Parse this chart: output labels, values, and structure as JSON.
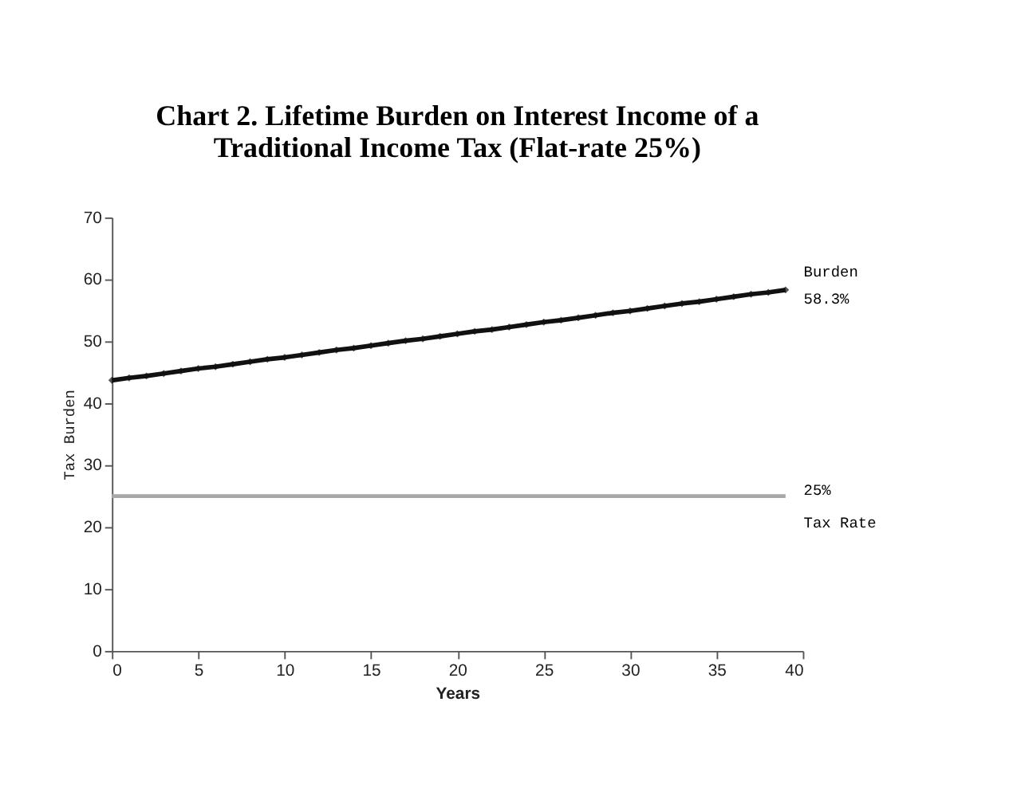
{
  "chart_data": {
    "type": "line",
    "title": [
      "Chart 2. Lifetime Burden on Interest Income of a",
      "Traditional Income Tax (Flat-rate 25%)"
    ],
    "xlabel": "Years",
    "ylabel": "Tax Burden",
    "x": [
      0,
      1,
      2,
      3,
      4,
      5,
      6,
      7,
      8,
      9,
      10,
      11,
      12,
      13,
      14,
      15,
      16,
      17,
      18,
      19,
      20,
      21,
      22,
      23,
      24,
      25,
      26,
      27,
      28,
      29,
      30,
      31,
      32,
      33,
      34,
      35,
      36,
      37,
      38,
      39
    ],
    "series": [
      {
        "name": "Burden",
        "color": "#111111",
        "marker": "diamond",
        "values": [
          43.7,
          44.1,
          44.4,
          44.8,
          45.2,
          45.6,
          45.9,
          46.3,
          46.7,
          47.1,
          47.4,
          47.8,
          48.2,
          48.6,
          48.9,
          49.3,
          49.7,
          50.1,
          50.4,
          50.8,
          51.2,
          51.6,
          51.9,
          52.3,
          52.7,
          53.1,
          53.4,
          53.8,
          54.2,
          54.6,
          54.9,
          55.3,
          55.7,
          56.1,
          56.4,
          56.8,
          57.2,
          57.6,
          57.9,
          58.3
        ],
        "value_labels": [
          null,
          null,
          null,
          null,
          null,
          null,
          null,
          null,
          null,
          null,
          null,
          null,
          null,
          null,
          null,
          null,
          null,
          null,
          null,
          null,
          null,
          null,
          null,
          null,
          null,
          null,
          null,
          null,
          null,
          null,
          null,
          null,
          null,
          null,
          null,
          null,
          null,
          null,
          null,
          "58.3%"
        ]
      },
      {
        "name": "Tax Rate",
        "color": "#a8a8a8",
        "marker": "none",
        "values": [
          25,
          25,
          25,
          25,
          25,
          25,
          25,
          25,
          25,
          25,
          25,
          25,
          25,
          25,
          25,
          25,
          25,
          25,
          25,
          25,
          25,
          25,
          25,
          25,
          25,
          25,
          25,
          25,
          25,
          25,
          25,
          25,
          25,
          25,
          25,
          25,
          25,
          25,
          25,
          25
        ],
        "value_labels": [
          null,
          null,
          null,
          null,
          null,
          null,
          null,
          null,
          null,
          null,
          null,
          null,
          null,
          null,
          null,
          null,
          null,
          null,
          null,
          null,
          null,
          null,
          null,
          null,
          null,
          null,
          null,
          null,
          null,
          null,
          null,
          null,
          null,
          null,
          null,
          null,
          null,
          null,
          null,
          "25%"
        ]
      }
    ],
    "xlim": [
      0,
      40
    ],
    "xticks": [
      0,
      5,
      10,
      15,
      20,
      25,
      30,
      35,
      40
    ],
    "ylim": [
      0,
      70
    ],
    "yticks": [
      0,
      10,
      20,
      30,
      40,
      50,
      60,
      70
    ],
    "grid": false,
    "line_style": "solid"
  }
}
